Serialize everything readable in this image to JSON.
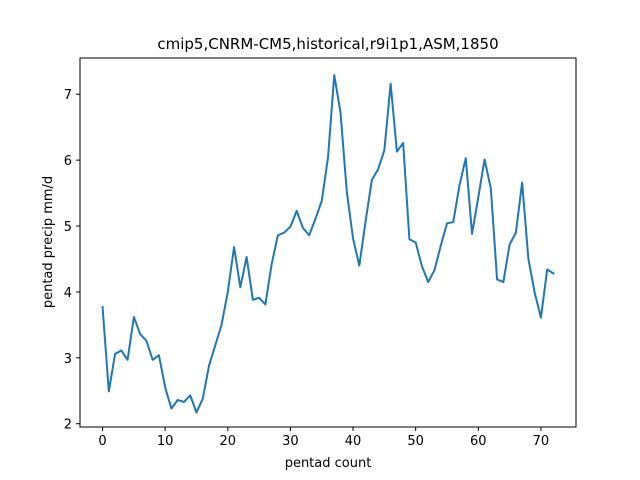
{
  "chart_data": {
    "type": "line",
    "title": "cmip5,CNRM-CM5,historical,r9i1p1,ASM,1850",
    "xlabel": "pentad count",
    "ylabel": "pentad precip mm/d",
    "xlim": [
      -3.6,
      75.6
    ],
    "ylim": [
      1.95,
      7.55
    ],
    "xticks": [
      0,
      10,
      20,
      30,
      40,
      50,
      60,
      70
    ],
    "yticks": [
      2,
      3,
      4,
      5,
      6,
      7
    ],
    "grid": false,
    "series": [
      {
        "color": "#1f77b4",
        "x": [
          0,
          1,
          2,
          3,
          4,
          5,
          6,
          7,
          8,
          9,
          10,
          11,
          12,
          13,
          14,
          15,
          16,
          17,
          18,
          19,
          20,
          21,
          22,
          23,
          24,
          25,
          26,
          27,
          28,
          29,
          30,
          31,
          32,
          33,
          34,
          35,
          36,
          37,
          38,
          39,
          40,
          41,
          42,
          43,
          44,
          45,
          46,
          47,
          48,
          49,
          50,
          51,
          52,
          53,
          54,
          55,
          56,
          57,
          58,
          59,
          60,
          61,
          62,
          63,
          64,
          65,
          66,
          67,
          68,
          69,
          70,
          71,
          72
        ],
        "y": [
          3.77,
          2.49,
          3.06,
          3.11,
          2.97,
          3.62,
          3.36,
          3.26,
          2.97,
          3.04,
          2.55,
          2.23,
          2.36,
          2.33,
          2.43,
          2.17,
          2.38,
          2.88,
          3.19,
          3.5,
          4.0,
          4.68,
          4.07,
          4.53,
          3.88,
          3.91,
          3.81,
          4.42,
          4.86,
          4.9,
          4.99,
          5.23,
          4.97,
          4.86,
          5.11,
          5.38,
          6.04,
          7.29,
          6.72,
          5.52,
          4.81,
          4.4,
          5.07,
          5.7,
          5.86,
          6.15,
          7.16,
          6.13,
          6.26,
          4.8,
          4.75,
          4.39,
          4.15,
          4.33,
          4.7,
          5.04,
          5.06,
          5.62,
          6.03,
          4.88,
          5.44,
          6.01,
          5.57,
          4.19,
          4.15,
          4.72,
          4.9,
          5.66,
          4.5,
          3.99,
          3.61,
          4.34,
          4.28
        ]
      }
    ]
  }
}
